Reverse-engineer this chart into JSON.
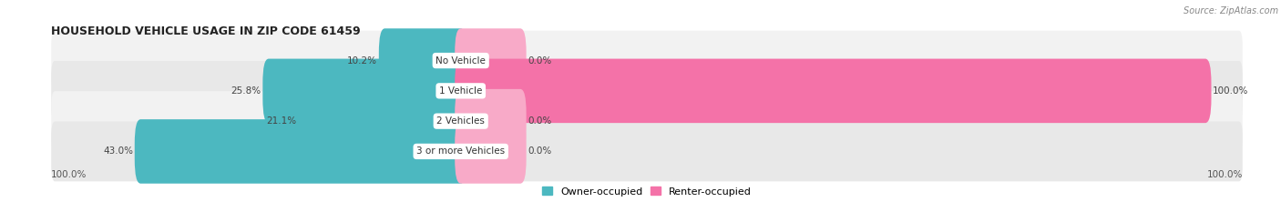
{
  "title": "HOUSEHOLD VEHICLE USAGE IN ZIP CODE 61459",
  "source": "Source: ZipAtlas.com",
  "categories": [
    "No Vehicle",
    "1 Vehicle",
    "2 Vehicles",
    "3 or more Vehicles"
  ],
  "owner_values": [
    10.2,
    25.8,
    21.1,
    43.0
  ],
  "renter_values": [
    0.0,
    100.0,
    0.0,
    0.0
  ],
  "owner_color": "#4cb8c0",
  "renter_color": "#f472a8",
  "renter_color_light": "#f8aac8",
  "figsize": [
    14.06,
    2.33
  ],
  "title_fontsize": 9,
  "source_fontsize": 7,
  "label_fontsize": 7.5,
  "category_fontsize": 7.5,
  "legend_fontsize": 8,
  "axis_label_left": "100.0%",
  "axis_label_right": "100.0%",
  "row_colors": [
    "#f2f2f2",
    "#e8e8e8"
  ],
  "bar_height": 0.52,
  "xlim_left": -55,
  "xlim_right": 105
}
